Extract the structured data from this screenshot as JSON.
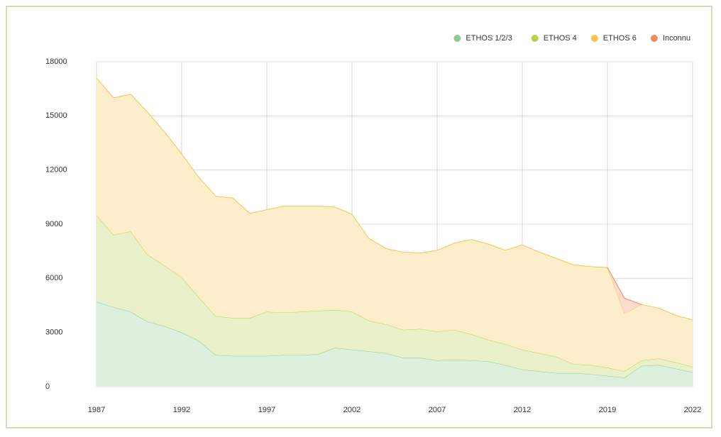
{
  "chart_data": {
    "type": "stacked_area",
    "categories": [
      "1987",
      null,
      null,
      null,
      null,
      "1992",
      null,
      null,
      null,
      null,
      "1997",
      null,
      null,
      null,
      null,
      "2002",
      null,
      null,
      null,
      null,
      "2007",
      null,
      null,
      null,
      null,
      "2012",
      null,
      null,
      null,
      null,
      "2019",
      null,
      null,
      null,
      null,
      "2022"
    ],
    "ylim": [
      0,
      18000
    ],
    "yticks": [
      0,
      3000,
      6000,
      9000,
      12000,
      15000,
      18000
    ],
    "grid": true,
    "legend": "top-right",
    "series": [
      {
        "name": "ETHOS 1/2/3",
        "color": "#8fc98f",
        "values": [
          4700,
          4400,
          4150,
          3600,
          3350,
          3000,
          2550,
          1750,
          1700,
          1700,
          1700,
          1750,
          1750,
          1800,
          2150,
          2050,
          1950,
          1850,
          1600,
          1600,
          1450,
          1500,
          1450,
          1400,
          1200,
          950,
          850,
          750,
          750,
          700,
          600,
          500,
          1150,
          1200,
          1000,
          800
        ]
      },
      {
        "name": "ETHOS 4",
        "color": "#b8d04e",
        "values": [
          4800,
          4000,
          4450,
          3700,
          3350,
          3050,
          2400,
          2150,
          2100,
          2100,
          2450,
          2350,
          2400,
          2400,
          2100,
          2100,
          1700,
          1600,
          1550,
          1600,
          1600,
          1650,
          1450,
          1200,
          1150,
          1100,
          1000,
          900,
          500,
          500,
          450,
          350,
          300,
          350,
          350,
          300
        ]
      },
      {
        "name": "ETHOS 6",
        "color": "#f5c453",
        "values": [
          7600,
          7600,
          7600,
          7900,
          7400,
          6850,
          6650,
          6650,
          6650,
          5800,
          5650,
          5900,
          5850,
          5800,
          5700,
          5400,
          4550,
          4200,
          4300,
          4200,
          4500,
          4800,
          5250,
          5300,
          5200,
          5800,
          5600,
          5450,
          5500,
          5450,
          5550,
          3200,
          3100,
          2800,
          2600,
          2600
        ]
      },
      {
        "name": "Inconnu",
        "color": "#ee8a5e",
        "values": [
          null,
          null,
          null,
          null,
          null,
          null,
          null,
          null,
          null,
          null,
          null,
          null,
          null,
          null,
          null,
          null,
          null,
          null,
          null,
          null,
          null,
          null,
          null,
          null,
          null,
          null,
          null,
          null,
          null,
          null,
          0,
          850,
          0,
          null,
          null,
          null
        ]
      }
    ]
  }
}
